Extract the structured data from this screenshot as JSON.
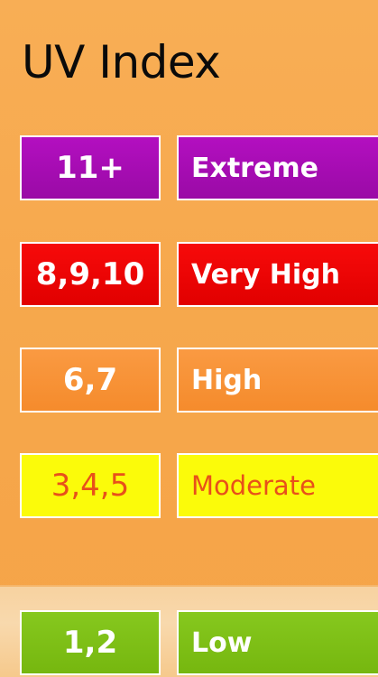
{
  "title": "UV Index",
  "levels": [
    {
      "index": "11+",
      "label": "Extreme",
      "color": "#9a0aa6"
    },
    {
      "index": "8,9,10",
      "label": "Very High",
      "color": "#e10000"
    },
    {
      "index": "6,7",
      "label": "High",
      "color": "#f58b2c"
    },
    {
      "index": "3,4,5",
      "label": "Moderate",
      "color": "#fbfb0a",
      "text_color": "#e8501a"
    },
    {
      "index": "1,2",
      "label": "Low",
      "color": "#76b70f"
    }
  ]
}
